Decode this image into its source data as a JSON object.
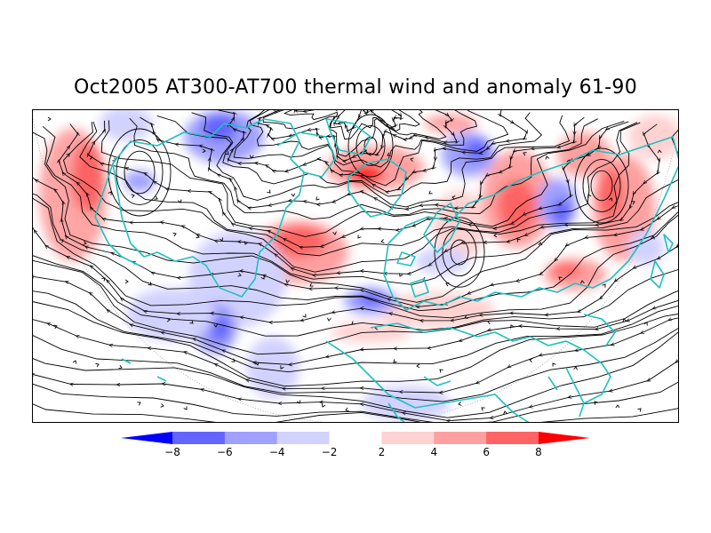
{
  "title": "Oct2005 AT300-AT700 thermal wind and anomaly 61-90",
  "legend": {
    "ticks": [
      "−8",
      "−6",
      "−4",
      "−2",
      "2",
      "4",
      "6",
      "8"
    ],
    "colors": [
      "#0000ff",
      "#6464ff",
      "#a0a0ff",
      "#d2d2ff",
      "#ffffff",
      "#ffd2d2",
      "#ffa0a0",
      "#ff6464",
      "#ff0000"
    ]
  },
  "map": {
    "projection": "north-polar-stereographic",
    "coastline_color": "#20c0c0",
    "streamline_color": "#000000",
    "anomaly_colors": {
      "neg_strong": "#6464ff",
      "neg_mid": "#a0a0ff",
      "neg_weak": "#d2d2ff",
      "pos_weak": "#ffd2d2",
      "pos_mid": "#ffa0a0",
      "pos_strong": "#ff6464",
      "pos_max": "#ff0000"
    }
  }
}
